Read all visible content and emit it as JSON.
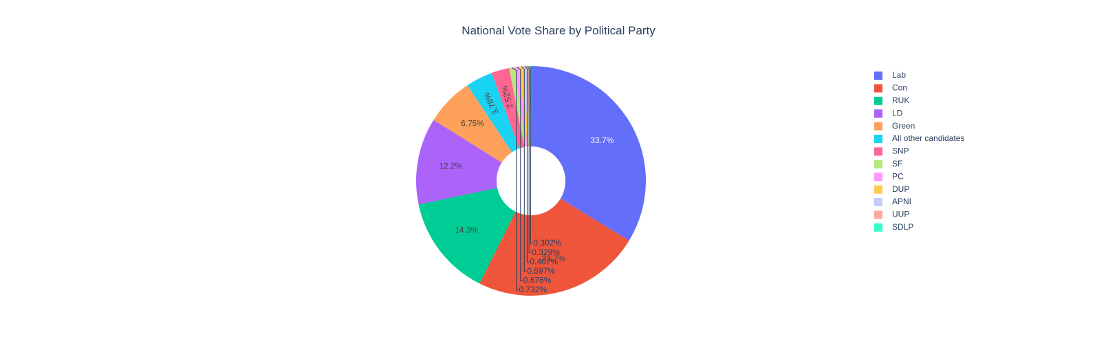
{
  "chart_data": {
    "type": "pie",
    "title": "National Vote Share by Political Party",
    "hole": 0.3,
    "legend_position": "right",
    "direction": "clockwise",
    "start_angle_deg": 0,
    "slices": [
      {
        "label": "Lab",
        "value": 33.7,
        "text": "33.7%",
        "color": "#636efa",
        "text_color": "#ffffff",
        "label_pos": "inside"
      },
      {
        "label": "Con",
        "value": 23.7,
        "text": "23.7%",
        "color": "#ef553b",
        "text_color": "#444444",
        "label_pos": "inside"
      },
      {
        "label": "RUK",
        "value": 14.3,
        "text": "14.3%",
        "color": "#00cc96",
        "text_color": "#444444",
        "label_pos": "inside"
      },
      {
        "label": "LD",
        "value": 12.2,
        "text": "12.2%",
        "color": "#ab63fa",
        "text_color": "#444444",
        "label_pos": "inside"
      },
      {
        "label": "Green",
        "value": 6.75,
        "text": "6.75%",
        "color": "#ffa15a",
        "text_color": "#444444",
        "label_pos": "inside"
      },
      {
        "label": "All other candidates",
        "value": 3.78,
        "text": "3.78%",
        "color": "#19d3f3",
        "text_color": "#444444",
        "label_pos": "inside-rotated"
      },
      {
        "label": "SNP",
        "value": 2.52,
        "text": "2.52%",
        "color": "#ff6692",
        "text_color": "#444444",
        "label_pos": "inside-rotated"
      },
      {
        "label": "SF",
        "value": 0.732,
        "text": "0.732%",
        "color": "#b6e880",
        "text_color": "#2a3f5f",
        "label_pos": "outside"
      },
      {
        "label": "PC",
        "value": 0.676,
        "text": "0.676%",
        "color": "#ff97ff",
        "text_color": "#2a3f5f",
        "label_pos": "outside"
      },
      {
        "label": "DUP",
        "value": 0.597,
        "text": "0.597%",
        "color": "#fecb52",
        "text_color": "#2a3f5f",
        "label_pos": "outside"
      },
      {
        "label": "APNI",
        "value": 0.407,
        "text": "0.407%",
        "color": "#c6ccfa",
        "text_color": "#2a3f5f",
        "label_pos": "outside"
      },
      {
        "label": "UUP",
        "value": 0.329,
        "text": "0.329%",
        "color": "#fca99c",
        "text_color": "#2a3f5f",
        "label_pos": "outside"
      },
      {
        "label": "SDLP",
        "value": 0.302,
        "text": "0.302%",
        "color": "#33ffc8",
        "text_color": "#2a3f5f",
        "label_pos": "outside"
      }
    ]
  }
}
